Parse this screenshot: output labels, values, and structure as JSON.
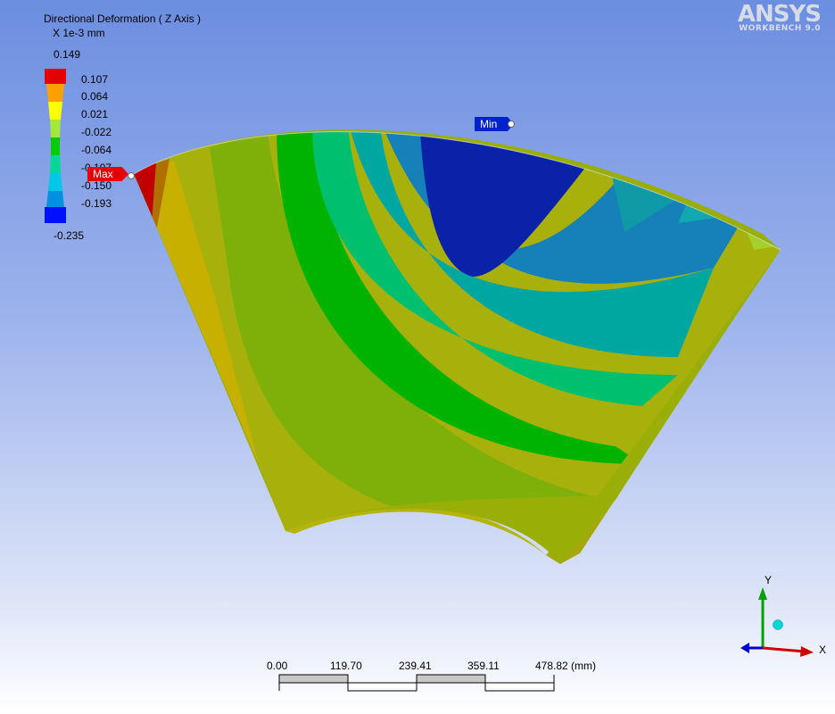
{
  "result": {
    "title": "Directional Deformation ( Z Axis )",
    "unit": "X 1e-3 mm"
  },
  "legend": {
    "values": [
      "0.149",
      "0.107",
      "0.064",
      "0.021",
      "-0.022",
      "-0.064",
      "-0.107",
      "-0.150",
      "-0.193",
      "-0.235"
    ],
    "colors": [
      "#e60000",
      "#ff9f00",
      "#ffff00",
      "#a4e83c",
      "#00cc00",
      "#00d89a",
      "#00c8e6",
      "#0090e0",
      "#0010ff"
    ]
  },
  "brand": {
    "logo": "ANSYS",
    "product": "WORKBENCH 9.0"
  },
  "probes": {
    "max_label": "Max",
    "min_label": "Min"
  },
  "scale_bar": {
    "labels": [
      "0.00",
      "119.70",
      "239.41",
      "359.11",
      "478.82 (mm)"
    ]
  },
  "triad": {
    "x_label": "X",
    "y_label": "Y"
  }
}
